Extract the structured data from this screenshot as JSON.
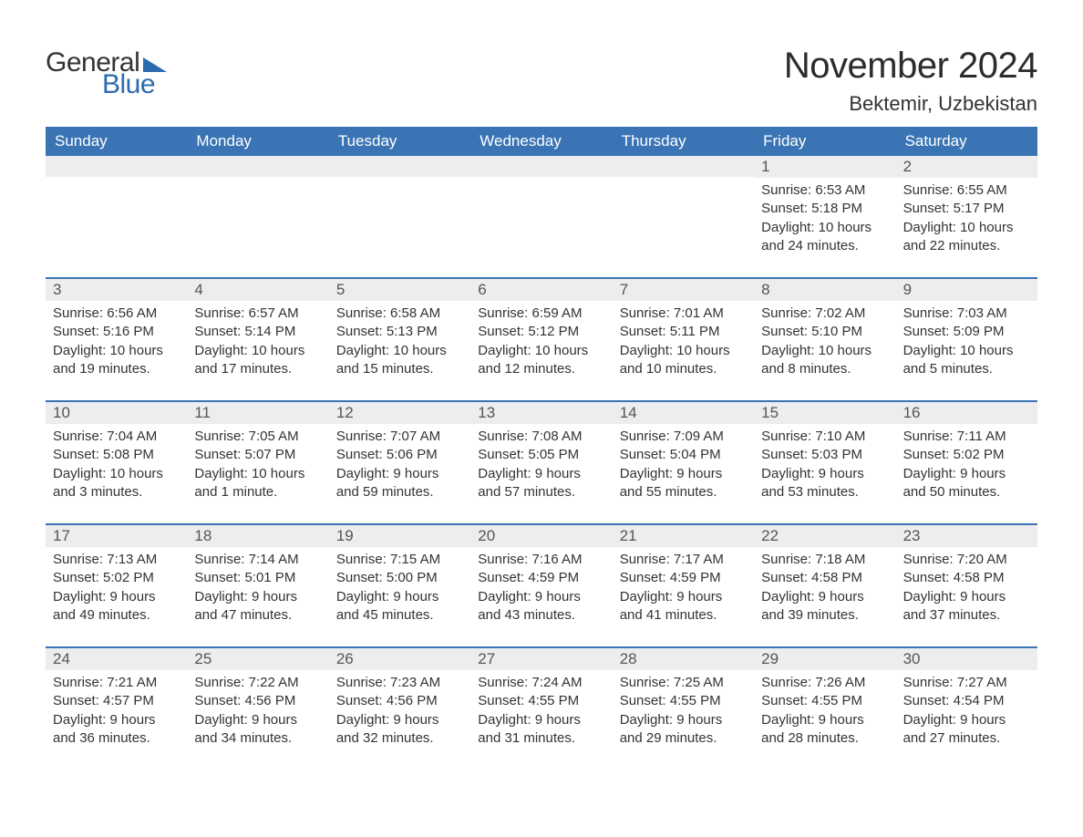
{
  "logo": {
    "word1": "General",
    "word2": "Blue"
  },
  "title": "November 2024",
  "location": "Bektemir, Uzbekistan",
  "colors": {
    "header_bg": "#3a74b4",
    "header_text": "#ffffff",
    "row_divider": "#3a74b4",
    "daynum_bg": "#ededed",
    "text": "#333333",
    "logo_accent": "#2b6cb0",
    "page_bg": "#ffffff"
  },
  "typography": {
    "title_fontsize": 40,
    "location_fontsize": 22,
    "dayname_fontsize": 17,
    "daynum_fontsize": 17,
    "body_fontsize": 15,
    "logo_fontsize": 30
  },
  "day_names": [
    "Sunday",
    "Monday",
    "Tuesday",
    "Wednesday",
    "Thursday",
    "Friday",
    "Saturday"
  ],
  "weeks": [
    [
      {
        "blank": true
      },
      {
        "blank": true
      },
      {
        "blank": true
      },
      {
        "blank": true
      },
      {
        "blank": true
      },
      {
        "day": "1",
        "sunrise": "Sunrise: 6:53 AM",
        "sunset": "Sunset: 5:18 PM",
        "daylight1": "Daylight: 10 hours",
        "daylight2": "and 24 minutes."
      },
      {
        "day": "2",
        "sunrise": "Sunrise: 6:55 AM",
        "sunset": "Sunset: 5:17 PM",
        "daylight1": "Daylight: 10 hours",
        "daylight2": "and 22 minutes."
      }
    ],
    [
      {
        "day": "3",
        "sunrise": "Sunrise: 6:56 AM",
        "sunset": "Sunset: 5:16 PM",
        "daylight1": "Daylight: 10 hours",
        "daylight2": "and 19 minutes."
      },
      {
        "day": "4",
        "sunrise": "Sunrise: 6:57 AM",
        "sunset": "Sunset: 5:14 PM",
        "daylight1": "Daylight: 10 hours",
        "daylight2": "and 17 minutes."
      },
      {
        "day": "5",
        "sunrise": "Sunrise: 6:58 AM",
        "sunset": "Sunset: 5:13 PM",
        "daylight1": "Daylight: 10 hours",
        "daylight2": "and 15 minutes."
      },
      {
        "day": "6",
        "sunrise": "Sunrise: 6:59 AM",
        "sunset": "Sunset: 5:12 PM",
        "daylight1": "Daylight: 10 hours",
        "daylight2": "and 12 minutes."
      },
      {
        "day": "7",
        "sunrise": "Sunrise: 7:01 AM",
        "sunset": "Sunset: 5:11 PM",
        "daylight1": "Daylight: 10 hours",
        "daylight2": "and 10 minutes."
      },
      {
        "day": "8",
        "sunrise": "Sunrise: 7:02 AM",
        "sunset": "Sunset: 5:10 PM",
        "daylight1": "Daylight: 10 hours",
        "daylight2": "and 8 minutes."
      },
      {
        "day": "9",
        "sunrise": "Sunrise: 7:03 AM",
        "sunset": "Sunset: 5:09 PM",
        "daylight1": "Daylight: 10 hours",
        "daylight2": "and 5 minutes."
      }
    ],
    [
      {
        "day": "10",
        "sunrise": "Sunrise: 7:04 AM",
        "sunset": "Sunset: 5:08 PM",
        "daylight1": "Daylight: 10 hours",
        "daylight2": "and 3 minutes."
      },
      {
        "day": "11",
        "sunrise": "Sunrise: 7:05 AM",
        "sunset": "Sunset: 5:07 PM",
        "daylight1": "Daylight: 10 hours",
        "daylight2": "and 1 minute."
      },
      {
        "day": "12",
        "sunrise": "Sunrise: 7:07 AM",
        "sunset": "Sunset: 5:06 PM",
        "daylight1": "Daylight: 9 hours",
        "daylight2": "and 59 minutes."
      },
      {
        "day": "13",
        "sunrise": "Sunrise: 7:08 AM",
        "sunset": "Sunset: 5:05 PM",
        "daylight1": "Daylight: 9 hours",
        "daylight2": "and 57 minutes."
      },
      {
        "day": "14",
        "sunrise": "Sunrise: 7:09 AM",
        "sunset": "Sunset: 5:04 PM",
        "daylight1": "Daylight: 9 hours",
        "daylight2": "and 55 minutes."
      },
      {
        "day": "15",
        "sunrise": "Sunrise: 7:10 AM",
        "sunset": "Sunset: 5:03 PM",
        "daylight1": "Daylight: 9 hours",
        "daylight2": "and 53 minutes."
      },
      {
        "day": "16",
        "sunrise": "Sunrise: 7:11 AM",
        "sunset": "Sunset: 5:02 PM",
        "daylight1": "Daylight: 9 hours",
        "daylight2": "and 50 minutes."
      }
    ],
    [
      {
        "day": "17",
        "sunrise": "Sunrise: 7:13 AM",
        "sunset": "Sunset: 5:02 PM",
        "daylight1": "Daylight: 9 hours",
        "daylight2": "and 49 minutes."
      },
      {
        "day": "18",
        "sunrise": "Sunrise: 7:14 AM",
        "sunset": "Sunset: 5:01 PM",
        "daylight1": "Daylight: 9 hours",
        "daylight2": "and 47 minutes."
      },
      {
        "day": "19",
        "sunrise": "Sunrise: 7:15 AM",
        "sunset": "Sunset: 5:00 PM",
        "daylight1": "Daylight: 9 hours",
        "daylight2": "and 45 minutes."
      },
      {
        "day": "20",
        "sunrise": "Sunrise: 7:16 AM",
        "sunset": "Sunset: 4:59 PM",
        "daylight1": "Daylight: 9 hours",
        "daylight2": "and 43 minutes."
      },
      {
        "day": "21",
        "sunrise": "Sunrise: 7:17 AM",
        "sunset": "Sunset: 4:59 PM",
        "daylight1": "Daylight: 9 hours",
        "daylight2": "and 41 minutes."
      },
      {
        "day": "22",
        "sunrise": "Sunrise: 7:18 AM",
        "sunset": "Sunset: 4:58 PM",
        "daylight1": "Daylight: 9 hours",
        "daylight2": "and 39 minutes."
      },
      {
        "day": "23",
        "sunrise": "Sunrise: 7:20 AM",
        "sunset": "Sunset: 4:58 PM",
        "daylight1": "Daylight: 9 hours",
        "daylight2": "and 37 minutes."
      }
    ],
    [
      {
        "day": "24",
        "sunrise": "Sunrise: 7:21 AM",
        "sunset": "Sunset: 4:57 PM",
        "daylight1": "Daylight: 9 hours",
        "daylight2": "and 36 minutes."
      },
      {
        "day": "25",
        "sunrise": "Sunrise: 7:22 AM",
        "sunset": "Sunset: 4:56 PM",
        "daylight1": "Daylight: 9 hours",
        "daylight2": "and 34 minutes."
      },
      {
        "day": "26",
        "sunrise": "Sunrise: 7:23 AM",
        "sunset": "Sunset: 4:56 PM",
        "daylight1": "Daylight: 9 hours",
        "daylight2": "and 32 minutes."
      },
      {
        "day": "27",
        "sunrise": "Sunrise: 7:24 AM",
        "sunset": "Sunset: 4:55 PM",
        "daylight1": "Daylight: 9 hours",
        "daylight2": "and 31 minutes."
      },
      {
        "day": "28",
        "sunrise": "Sunrise: 7:25 AM",
        "sunset": "Sunset: 4:55 PM",
        "daylight1": "Daylight: 9 hours",
        "daylight2": "and 29 minutes."
      },
      {
        "day": "29",
        "sunrise": "Sunrise: 7:26 AM",
        "sunset": "Sunset: 4:55 PM",
        "daylight1": "Daylight: 9 hours",
        "daylight2": "and 28 minutes."
      },
      {
        "day": "30",
        "sunrise": "Sunrise: 7:27 AM",
        "sunset": "Sunset: 4:54 PM",
        "daylight1": "Daylight: 9 hours",
        "daylight2": "and 27 minutes."
      }
    ]
  ]
}
